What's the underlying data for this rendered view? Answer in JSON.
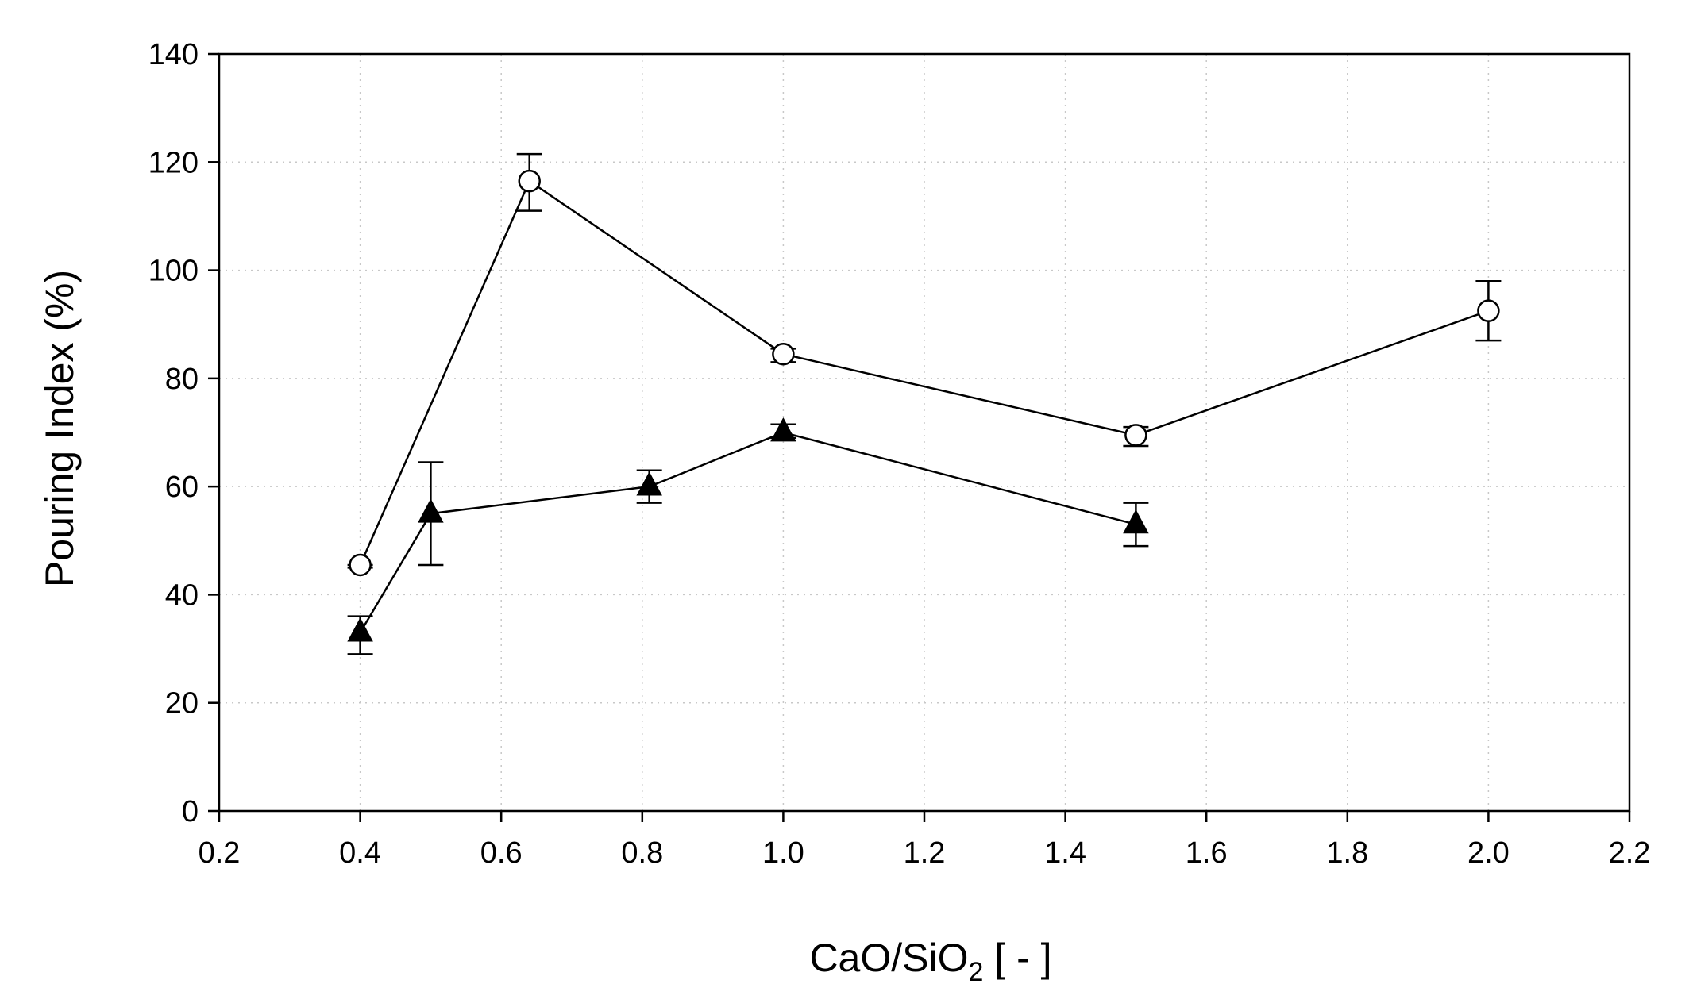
{
  "chart_data": {
    "type": "line",
    "title": "",
    "xlabel": "CaO/SiO",
    "xlabel_subscript": "2",
    "xlabel_suffix": " [ - ]",
    "ylabel": "Pouring Index (%)",
    "xlim": [
      0.2,
      2.2
    ],
    "ylim": [
      0,
      140
    ],
    "grid": true,
    "x_ticks": [
      0.2,
      0.4,
      0.6,
      0.8,
      1.0,
      1.2,
      1.4,
      1.6,
      1.8,
      2.0,
      2.2
    ],
    "x_tick_labels": [
      "0.2",
      "0.4",
      "0.6",
      "0.8",
      "1.0",
      "1.2",
      "1.4",
      "1.6",
      "1.8",
      "2.0",
      "2.2"
    ],
    "y_ticks": [
      0,
      20,
      40,
      60,
      80,
      100,
      120,
      140
    ],
    "y_tick_labels": [
      "0",
      "20",
      "40",
      "60",
      "80",
      "100",
      "120",
      "140"
    ],
    "series": [
      {
        "name": "open circles",
        "marker": "circle-open",
        "color": "#000000",
        "x": [
          0.4,
          0.64,
          1.0,
          1.5,
          2.0
        ],
        "y": [
          45.5,
          116.5,
          84.5,
          69.5,
          92.5
        ],
        "err_low": [
          45.0,
          111.0,
          83.0,
          67.5,
          87.0
        ],
        "err_high": [
          45.5,
          121.5,
          85.5,
          71.0,
          98.0
        ]
      },
      {
        "name": "filled triangles",
        "marker": "triangle-filled",
        "color": "#000000",
        "x": [
          0.4,
          0.5,
          0.81,
          1.0,
          1.5
        ],
        "y": [
          33.0,
          55.0,
          60.0,
          70.0,
          53.0
        ],
        "err_low": [
          29.0,
          45.5,
          57.0,
          69.0,
          49.0
        ],
        "err_high": [
          36.0,
          64.5,
          63.0,
          71.5,
          57.0
        ]
      }
    ]
  }
}
